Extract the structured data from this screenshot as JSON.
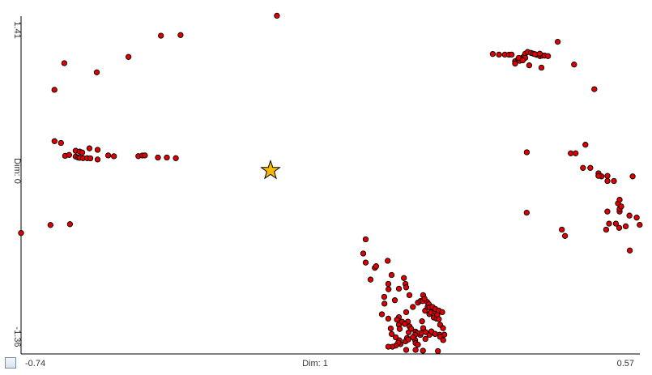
{
  "chart_data": {
    "type": "scatter",
    "title": "",
    "xlabel": "Dim: 1",
    "ylabel": "Dim: 0",
    "xlim": [
      -0.74,
      0.57
    ],
    "ylim": [
      -1.36,
      1.41
    ],
    "x_tick_labels": {
      "min": "-0.74",
      "max": "0.57"
    },
    "y_tick_labels": {
      "min": "-1.36",
      "max": "1.41"
    },
    "grid": false,
    "legend": "none",
    "point_color": "#e00000",
    "marker": {
      "name": "star",
      "color": "#f5b800",
      "x": -0.2119,
      "y": 0.1448
    },
    "series": [
      {
        "points": [
          [
            -0.74,
            -0.368
          ],
          [
            -0.6778,
            -0.3025
          ],
          [
            -0.6365,
            -0.2957
          ],
          [
            -0.6692,
            0.3848
          ],
          [
            -0.6555,
            0.3707
          ],
          [
            -0.6693,
            0.8059
          ],
          [
            -0.6485,
            1.0246
          ],
          [
            -0.5796,
            0.9498
          ],
          [
            -0.5127,
            1.076
          ],
          [
            -0.4438,
            1.2498
          ],
          [
            -0.4024,
            1.2553
          ],
          [
            -0.1983,
            1.4141
          ],
          [
            -0.6468,
            0.2651
          ],
          [
            -0.6382,
            0.2724
          ],
          [
            -0.6244,
            0.2587
          ],
          [
            -0.6192,
            0.2509
          ],
          [
            -0.6158,
            0.2482
          ],
          [
            -0.6089,
            0.2458
          ],
          [
            -0.6003,
            0.2458
          ],
          [
            -0.5934,
            0.2445
          ],
          [
            -0.6244,
            0.3058
          ],
          [
            -0.6158,
            0.2992
          ],
          [
            -0.6106,
            0.2923
          ],
          [
            -0.5952,
            0.3258
          ],
          [
            -0.5779,
            0.3137
          ],
          [
            -0.5779,
            0.2349
          ],
          [
            -0.5555,
            0.2678
          ],
          [
            -0.5434,
            0.2613
          ],
          [
            -0.4917,
            0.2621
          ],
          [
            -0.4831,
            0.2675
          ],
          [
            -0.4778,
            0.2681
          ],
          [
            -0.4503,
            0.2507
          ],
          [
            -0.4313,
            0.2507
          ],
          [
            -0.4124,
            0.2453
          ],
          [
            -0.0001,
            -0.7501
          ],
          [
            -0.0104,
            -0.6107
          ],
          [
            -0.0155,
            -0.5362
          ],
          [
            -0.0104,
            -0.4202
          ],
          [
            0.0089,
            -0.6542
          ],
          [
            0.0117,
            -0.6406
          ],
          [
            0.0363,
            -0.5961
          ],
          [
            0.0444,
            -0.7126
          ],
          [
            0.038,
            -0.8298
          ],
          [
            0.0289,
            -0.8917
          ],
          [
            0.0599,
            -0.8243
          ],
          [
            0.0513,
            -0.9195
          ],
          [
            0.0822,
            -0.8779
          ],
          [
            0.0896,
            -0.9744
          ],
          [
            0.0754,
            -1.0171
          ],
          [
            0.0599,
            -1.0582
          ],
          [
            0.0599,
            -1.1207
          ],
          [
            0.0616,
            -1.1551
          ],
          [
            0.0789,
            -1.0951
          ],
          [
            0.0806,
            -1.1824
          ],
          [
            0.1054,
            -1.2036
          ],
          [
            0.1114,
            -1.1479
          ],
          [
            0.1089,
            -1.0926
          ],
          [
            0.1244,
            -1.0333
          ],
          [
            0.1154,
            -1.0062
          ],
          [
            0.1208,
            -0.9744
          ],
          [
            0.1002,
            -0.9398
          ],
          [
            0.1055,
            -0.9262
          ],
          [
            0.1338,
            -1.062
          ],
          [
            0.1398,
            -1.0713
          ],
          [
            0.1278,
            -1.0195
          ],
          [
            0.1363,
            -1.0151
          ],
          [
            0.1412,
            -1.0401
          ],
          [
            0.1445,
            -1.0743
          ],
          [
            0.1471,
            -1.1208
          ],
          [
            0.1534,
            -1.1487
          ],
          [
            0.1561,
            -1.2018
          ],
          [
            0.1364,
            -1.1956
          ],
          [
            0.1246,
            -1.2035
          ],
          [
            0.1159,
            -1.2371
          ],
          [
            0.0944,
            -1.2462
          ],
          [
            0.0772,
            -1.2293
          ],
          [
            0.0532,
            -1.2238
          ],
          [
            0.0446,
            -1.1967
          ],
          [
            0.0425,
            -1.1516
          ],
          [
            0.0634,
            -1.2787
          ],
          [
            0.0737,
            -1.2566
          ],
          [
            0.0754,
            -1.3267
          ],
          [
            0.1108,
            -1.3336
          ],
          [
            0.1425,
            -1.3369
          ],
          [
            0.0952,
            -1.2719
          ],
          [
            0.1002,
            -1.2839
          ],
          [
            0.0952,
            -1.3267
          ],
          [
            0.0375,
            -0.7856
          ],
          [
            0.0294,
            -0.9478
          ],
          [
            0.0238,
            -1.0346
          ],
          [
            0.0375,
            -1.0705
          ],
          [
            0.0557,
            -1.0787
          ],
          [
            0.0669,
            -1.0962
          ],
          [
            0.0723,
            -1.1139
          ],
          [
            0.0823,
            -1.1343
          ],
          [
            0.0858,
            -1.1534
          ],
          [
            0.095,
            -1.1764
          ],
          [
            0.1067,
            -1.1883
          ],
          [
            0.1164,
            -1.1815
          ],
          [
            0.1286,
            -1.1754
          ],
          [
            0.1368,
            -1.1959
          ],
          [
            0.1463,
            -1.2024
          ],
          [
            0.1471,
            -1.2196
          ],
          [
            0.1536,
            -1.2461
          ],
          [
            0.0982,
            -1.1883
          ],
          [
            0.094,
            -1.204
          ],
          [
            0.0896,
            -1.2223
          ],
          [
            0.0797,
            -1.2416
          ],
          [
            0.0609,
            -1.2487
          ],
          [
            0.0585,
            -1.2676
          ],
          [
            0.0534,
            -1.2918
          ],
          [
            0.0462,
            -1.3006
          ],
          [
            0.0375,
            -1.3006
          ],
          [
            0.1102,
            -0.9262
          ],
          [
            0.1197,
            -0.9334
          ],
          [
            0.1231,
            -0.951
          ],
          [
            0.1248,
            -0.9775
          ],
          [
            0.1311,
            -0.9744
          ],
          [
            0.1371,
            -0.9904
          ],
          [
            0.1443,
            -1.0037
          ],
          [
            0.1516,
            -1.0171
          ],
          [
            0.0706,
            -0.7379
          ],
          [
            0.0737,
            -0.7856
          ],
          [
            0.0754,
            -0.8141
          ],
          [
            0.1111,
            -0.8779
          ],
          [
            0.114,
            -0.9062
          ],
          [
            0.2586,
            1.0997
          ],
          [
            0.2719,
            1.0951
          ],
          [
            0.2842,
            1.0951
          ],
          [
            0.2929,
            1.0944
          ],
          [
            0.2985,
            1.0951
          ],
          [
            0.3059,
            1.0403
          ],
          [
            0.3059,
            1.0211
          ],
          [
            0.3124,
            1.0588
          ],
          [
            0.3158,
            1.0443
          ],
          [
            0.3206,
            1.0676
          ],
          [
            0.3249,
            1.0826
          ],
          [
            0.3274,
            1.1025
          ],
          [
            0.3326,
            1.1162
          ],
          [
            0.3394,
            1.1093
          ],
          [
            0.3445,
            1.1025
          ],
          [
            0.3514,
            1.0932
          ],
          [
            0.3585,
            1.0826
          ],
          [
            0.3635,
            1.0863
          ],
          [
            0.3686,
            1.0863
          ],
          [
            0.3755,
            1.0826
          ],
          [
            0.3583,
            1.1025
          ],
          [
            0.3479,
            1.0986
          ],
          [
            0.3273,
            1.0676
          ],
          [
            0.3136,
            1.0676
          ],
          [
            0.3221,
            1.0482
          ],
          [
            0.3358,
            1.0071
          ],
          [
            0.3617,
            0.9882
          ],
          [
            0.3962,
            1.2004
          ],
          [
            0.4307,
            1.0131
          ],
          [
            0.4737,
            0.8115
          ],
          [
            0.4548,
            0.3558
          ],
          [
            0.4237,
            0.2852
          ],
          [
            0.4341,
            0.2852
          ],
          [
            0.4496,
            0.1656
          ],
          [
            0.4651,
            0.1655
          ],
          [
            0.3307,
            0.2942
          ],
          [
            0.3305,
            -0.2012
          ],
          [
            0.4048,
            -0.3402
          ],
          [
            0.4115,
            -0.3922
          ],
          [
            0.4986,
            -0.3402
          ],
          [
            0.5048,
            -0.2915
          ],
          [
            0.5192,
            -0.2915
          ],
          [
            0.5262,
            -0.3258
          ],
          [
            0.5401,
            -0.3129
          ],
          [
            0.5488,
            -0.5117
          ],
          [
            0.5697,
            -0.3012
          ],
          [
            0.4823,
            0.1216
          ],
          [
            0.4889,
            0.0962
          ],
          [
            0.4823,
            0.1003
          ],
          [
            0.5014,
            0.1003
          ],
          [
            0.5014,
            0.058
          ],
          [
            0.5151,
            0.058
          ],
          [
            0.5237,
            -0.1254
          ],
          [
            0.5272,
            -0.0953
          ],
          [
            0.5547,
            0.0962
          ],
          [
            0.5633,
            -0.2418
          ],
          [
            0.5478,
            -0.2253
          ],
          [
            0.5271,
            -0.1924
          ],
          [
            0.5271,
            -0.1711
          ],
          [
            0.5305,
            -0.1501
          ],
          [
            0.5013,
            -0.1925
          ]
        ]
      }
    ]
  }
}
